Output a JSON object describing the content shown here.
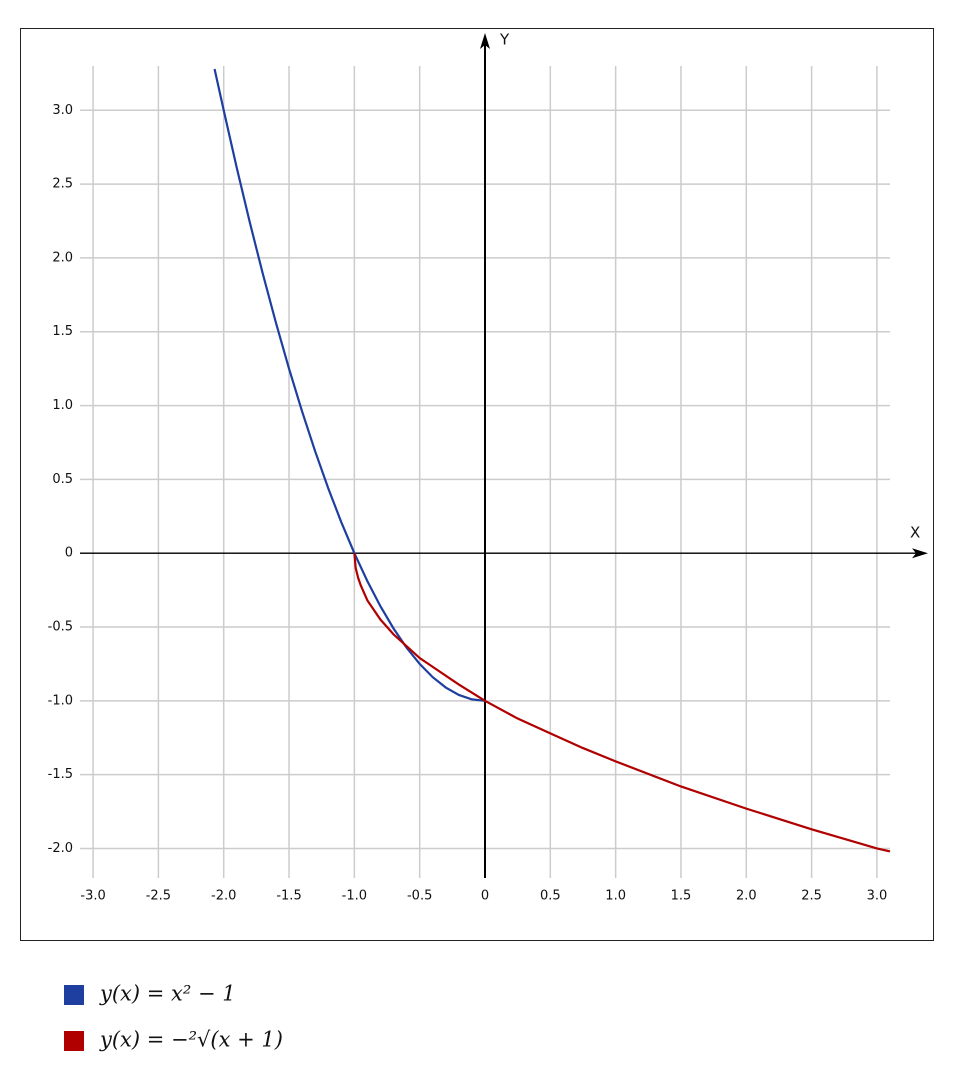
{
  "chart_data": {
    "type": "line",
    "x_label": "X",
    "y_label": "Y",
    "xlim": [
      -3.1,
      3.1
    ],
    "ylim": [
      -2.2,
      3.3
    ],
    "xticks": [
      {
        "value": -3,
        "label": "-3.0"
      },
      -2.5,
      {
        "value": -2,
        "label": "-2.0"
      },
      -1.5,
      {
        "value": -1,
        "label": "-1.0"
      },
      -0.5,
      0,
      0.5,
      {
        "value": 1,
        "label": "1.0"
      },
      1.5,
      {
        "value": 2,
        "label": "2.0"
      },
      2.5,
      {
        "value": 3,
        "label": "3.0"
      }
    ],
    "yticks": [
      {
        "value": -2,
        "label": "-2.0"
      },
      -1.5,
      {
        "value": -1,
        "label": "-1.0"
      },
      -0.5,
      0,
      0.5,
      {
        "value": 1,
        "label": "1.0"
      },
      1.5,
      {
        "value": 2,
        "label": "2.0"
      },
      2.5,
      {
        "value": 3,
        "label": "3.0"
      }
    ],
    "grid": true,
    "series": [
      {
        "name": "y(x) = x² − 1",
        "color": "#1f3fa0",
        "x": [
          -2.07,
          -2.0,
          -1.9,
          -1.8,
          -1.7,
          -1.6,
          -1.5,
          -1.4,
          -1.3,
          -1.2,
          -1.1,
          -1.0,
          -0.9,
          -0.8,
          -0.7,
          -0.6,
          -0.5,
          -0.4,
          -0.3,
          -0.2,
          -0.1,
          0
        ],
        "values": [
          3.28,
          3,
          2.61,
          2.24,
          1.89,
          1.56,
          1.25,
          0.96,
          0.69,
          0.44,
          0.21,
          0,
          -0.19,
          -0.36,
          -0.51,
          -0.64,
          -0.75,
          -0.84,
          -0.91,
          -0.96,
          -0.99,
          -1
        ]
      },
      {
        "name": "y(x) = −²√(x + 1)",
        "color": "#b00000",
        "x": [
          -1,
          -0.99,
          -0.97,
          -0.95,
          -0.9,
          -0.8,
          -0.7,
          -0.6,
          -0.5,
          -0.4,
          -0.2,
          0,
          0.25,
          0.5,
          0.75,
          1,
          1.5,
          2,
          2.5,
          3,
          3.1
        ],
        "values": [
          0,
          -0.1,
          -0.17,
          -0.22,
          -0.32,
          -0.45,
          -0.55,
          -0.63,
          -0.71,
          -0.77,
          -0.89,
          -1,
          -1.12,
          -1.22,
          -1.32,
          -1.41,
          -1.58,
          -1.73,
          -1.87,
          -2,
          -2.02
        ]
      }
    ]
  }
}
